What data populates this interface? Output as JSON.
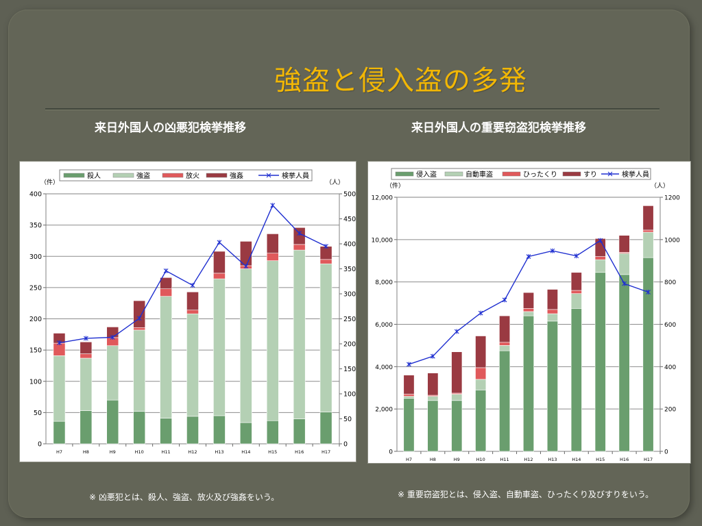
{
  "slide": {
    "title": "強盗と侵入盗の多発",
    "left_subtitle": "来日外国人の凶悪犯検挙推移",
    "right_subtitle": "来日外国人の重要窃盗犯検挙推移",
    "left_note": "※ 凶悪犯とは、殺人、強盗、放火及び強姦をいう。",
    "right_note": "※ 重要窃盗犯とは、侵入盗、自動車盗、ひったくり及びすりをいう。"
  },
  "colors": {
    "background": "#636557",
    "title": "#f2b705",
    "line": "#1f2fd0"
  },
  "chart_data": [
    {
      "type": "bar",
      "stacked": true,
      "categories": [
        "H7",
        "H8",
        "H9",
        "H10",
        "H11",
        "H12",
        "H13",
        "H14",
        "H15",
        "H16",
        "H17"
      ],
      "left_axis_unit": "（件）",
      "right_axis_unit": "（人）",
      "ylim": [
        0,
        400
      ],
      "yticks": [
        "0",
        "50",
        "100",
        "150",
        "200",
        "250",
        "300",
        "350",
        "400"
      ],
      "y2lim": [
        0,
        500
      ],
      "y2ticks": [
        "0",
        "50",
        "100",
        "150",
        "200",
        "250",
        "300",
        "350",
        "400",
        "450",
        "500"
      ],
      "grid": true,
      "legend_position": "top",
      "series": [
        {
          "name": "殺人",
          "color": "#6a9e6e",
          "values": [
            36,
            53,
            70,
            52,
            41,
            44,
            45,
            34,
            37,
            40,
            51
          ]
        },
        {
          "name": "強盗",
          "color": "#b4d0b4",
          "values": [
            105,
            84,
            87,
            130,
            195,
            164,
            219,
            246,
            256,
            270,
            237
          ]
        },
        {
          "name": "放火",
          "color": "#e0595b",
          "values": [
            20,
            7,
            13,
            4,
            12,
            6,
            9,
            5,
            12,
            9,
            7
          ]
        },
        {
          "name": "強姦",
          "color": "#9a3a42",
          "values": [
            16,
            19,
            17,
            43,
            18,
            29,
            35,
            39,
            31,
            27,
            21
          ]
        }
      ],
      "line": {
        "name": "検挙人員",
        "color": "#1f2fd0",
        "values": [
          202,
          211,
          213,
          251,
          346,
          317,
          403,
          355,
          477,
          421,
          395
        ]
      }
    },
    {
      "type": "bar",
      "stacked": true,
      "categories": [
        "H7",
        "H8",
        "H9",
        "H10",
        "H11",
        "H12",
        "H13",
        "H14",
        "H15",
        "H16",
        "H17"
      ],
      "left_axis_unit": "（件）",
      "right_axis_unit": "（人）",
      "ylim": [
        0,
        12000
      ],
      "yticks": [
        "0",
        "2,000",
        "4,000",
        "6,000",
        "8,000",
        "10,000",
        "12,000"
      ],
      "y2lim": [
        0,
        1200
      ],
      "y2ticks": [
        "0",
        "200",
        "400",
        "600",
        "800",
        "1000",
        "1200"
      ],
      "grid": true,
      "legend_position": "top",
      "series": [
        {
          "name": "侵入盗",
          "color": "#6a9e6e",
          "values": [
            2500,
            2400,
            2400,
            2900,
            4750,
            6400,
            6150,
            6750,
            8450,
            8350,
            9150
          ]
        },
        {
          "name": "自動車盗",
          "color": "#b4d0b4",
          "values": [
            100,
            200,
            300,
            500,
            250,
            200,
            350,
            700,
            600,
            1000,
            1200
          ]
        },
        {
          "name": "ひったくり",
          "color": "#e0595b",
          "values": [
            100,
            50,
            50,
            550,
            150,
            150,
            200,
            150,
            150,
            50,
            100
          ]
        },
        {
          "name": "すり",
          "color": "#9a3a42",
          "values": [
            900,
            1050,
            1950,
            1500,
            1250,
            750,
            950,
            850,
            850,
            800,
            1150
          ]
        }
      ],
      "line": {
        "name": "検挙人員",
        "color": "#1f2fd0",
        "values": [
          411,
          449,
          566,
          653,
          715,
          920,
          947,
          923,
          996,
          792,
          752
        ]
      }
    }
  ]
}
